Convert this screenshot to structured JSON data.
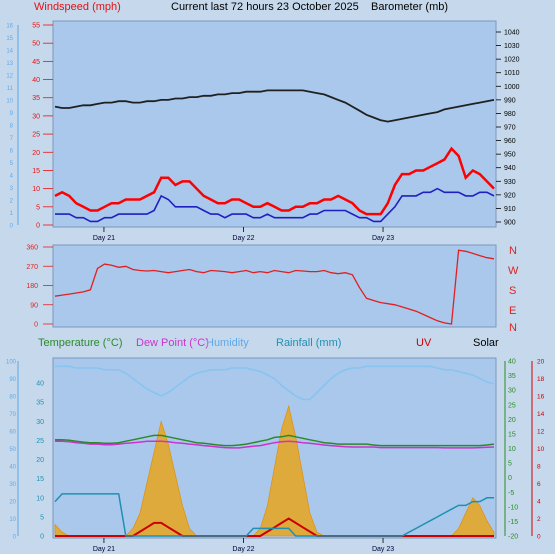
{
  "header": {
    "windspeed_label": "Windspeed (mph)",
    "title": "Current last 72 hours 23 October 2025",
    "barometer_label": "Barometer (mb)"
  },
  "middle": {
    "compass": [
      "N",
      "W",
      "S",
      "E",
      "N"
    ]
  },
  "bottom_header": {
    "temperature": "Temperature (°C)",
    "dew_point": "Dew Point (°C)",
    "humidity": "Humidity",
    "rainfall": "Rainfall (mm)",
    "uv": "UV",
    "solar": "Solar"
  },
  "colors": {
    "bg": "#c6d9ec",
    "plot": "#a9c8ec",
    "wind_gust": "#ff0000",
    "wind_avg": "#2020c0",
    "barometer": "#202020",
    "direction": "#e02020",
    "temperature": "#2a8a2a",
    "dew_point": "#cc33cc",
    "humidity": "#88c4f0",
    "rainfall": "#2090b0",
    "uv": "#cc0000",
    "solar": "#f0a000",
    "wind_axis": "#e81010",
    "humidity_axis": "#60a8e8",
    "temp_axis": "#2a8a2a",
    "rain_axis": "#2090b0",
    "uv_axis": "#cc0000"
  },
  "chart_data": [
    {
      "type": "line",
      "name_ref": "wind_baro",
      "x_labels": [
        "Day 21",
        "Day 22",
        "Day 23"
      ],
      "y_left": {
        "label": "Windspeed (mph)",
        "range": [
          0,
          55
        ],
        "ticks": [
          0,
          5,
          10,
          15,
          20,
          25,
          30,
          35,
          40,
          45,
          50,
          55
        ]
      },
      "y_left_outer": {
        "range": [
          0,
          16
        ],
        "ticks": [
          0,
          1,
          2,
          3,
          4,
          5,
          6,
          7,
          8,
          9,
          10,
          11,
          12,
          13,
          14,
          15,
          16
        ]
      },
      "y_right": {
        "label": "Barometer (mb)",
        "range": [
          900,
          1040
        ],
        "ticks": [
          900,
          910,
          920,
          930,
          940,
          950,
          960,
          970,
          980,
          990,
          1000,
          1010,
          1020,
          1030,
          1040
        ]
      },
      "series": [
        {
          "name": "gust",
          "values": [
            8,
            9,
            8,
            6,
            5,
            4,
            4,
            5,
            6,
            6,
            7,
            7,
            7,
            8,
            9,
            13,
            13,
            11,
            12,
            12,
            10,
            8,
            7,
            6,
            6,
            7,
            7,
            6,
            5,
            5,
            6,
            5,
            4,
            4,
            5,
            5,
            6,
            6,
            7,
            7,
            8,
            7,
            6,
            4,
            3,
            3,
            3,
            6,
            11,
            14,
            14,
            15,
            15,
            16,
            17,
            18,
            21,
            19,
            13,
            15,
            14,
            12,
            10
          ]
        },
        {
          "name": "average",
          "values": [
            3,
            3,
            3,
            2,
            2,
            1,
            1,
            2,
            2,
            3,
            3,
            3,
            3,
            3,
            4,
            8,
            7,
            5,
            5,
            5,
            5,
            4,
            3,
            3,
            2,
            3,
            3,
            3,
            2,
            2,
            3,
            2,
            2,
            2,
            2,
            2,
            3,
            3,
            4,
            4,
            4,
            4,
            3,
            2,
            2,
            1,
            1,
            3,
            5,
            8,
            8,
            8,
            9,
            9,
            10,
            9,
            9,
            9,
            8,
            8,
            9,
            9,
            8
          ]
        },
        {
          "name": "barometer",
          "values": [
            985,
            984,
            984,
            985,
            986,
            986,
            987,
            988,
            988,
            989,
            989,
            988,
            988,
            989,
            989,
            990,
            990,
            991,
            991,
            992,
            992,
            993,
            993,
            994,
            994,
            995,
            995,
            996,
            996,
            996,
            997,
            997,
            997,
            997,
            997,
            997,
            996,
            995,
            994,
            992,
            990,
            988,
            985,
            982,
            979,
            977,
            975,
            974,
            975,
            976,
            977,
            978,
            979,
            980,
            981,
            983,
            984,
            985,
            986,
            987,
            988,
            989,
            990
          ]
        }
      ]
    },
    {
      "type": "line",
      "name_ref": "direction",
      "y_left": {
        "range": [
          0,
          360
        ],
        "ticks": [
          0,
          90,
          180,
          270,
          360
        ]
      },
      "y_right_labels": [
        "N",
        "W",
        "S",
        "E",
        "N"
      ],
      "series": [
        {
          "name": "direction",
          "values": [
            130,
            135,
            140,
            145,
            150,
            160,
            260,
            280,
            275,
            265,
            270,
            255,
            250,
            248,
            250,
            245,
            240,
            245,
            250,
            255,
            245,
            240,
            250,
            248,
            245,
            240,
            245,
            250,
            240,
            245,
            240,
            250,
            245,
            240,
            250,
            248,
            245,
            245,
            250,
            240,
            235,
            240,
            230,
            170,
            120,
            110,
            100,
            95,
            90,
            80,
            70,
            60,
            45,
            30,
            15,
            5,
            0,
            345,
            340,
            330,
            320,
            310,
            305
          ]
        }
      ]
    },
    {
      "type": "line",
      "name_ref": "temp_rain",
      "x_labels": [
        "Day 21",
        "Day 22",
        "Day 23"
      ],
      "y_left": {
        "label": "Humidity",
        "range": [
          0,
          100
        ],
        "ticks": [
          0,
          10,
          20,
          30,
          40,
          50,
          60,
          70,
          80,
          90,
          100
        ]
      },
      "y_left_inner": {
        "label": "Rainfall (mm)",
        "range": [
          0,
          40
        ],
        "ticks": [
          0,
          5,
          10,
          15,
          20,
          25,
          30,
          35,
          40
        ]
      },
      "y_right_inner": {
        "label": "Temperature (°C)",
        "range": [
          -20,
          40
        ],
        "ticks": [
          -20,
          -15,
          -10,
          -5,
          0,
          5,
          10,
          15,
          20,
          25,
          30,
          35,
          40
        ]
      },
      "y_right": {
        "label": "UV",
        "range": [
          0,
          20
        ],
        "ticks": [
          0,
          2,
          4,
          6,
          8,
          10,
          12,
          14,
          16,
          18,
          20
        ]
      },
      "series": [
        {
          "name": "humidity",
          "values": [
            97,
            97,
            97,
            96,
            96,
            96,
            96,
            95,
            95,
            95,
            93,
            90,
            87,
            84,
            82,
            80,
            82,
            85,
            88,
            91,
            93,
            94,
            95,
            95,
            95,
            96,
            96,
            96,
            95,
            94,
            92,
            90,
            86,
            83,
            80,
            78,
            78,
            82,
            86,
            90,
            93,
            95,
            96,
            96,
            97,
            97,
            97,
            97,
            97,
            97,
            97,
            97,
            97,
            97,
            96,
            95,
            95,
            94,
            93,
            92,
            90,
            88,
            87
          ]
        },
        {
          "name": "temperature",
          "values": [
            13,
            13,
            12.8,
            12.5,
            12.2,
            12,
            12,
            11.8,
            11.8,
            12,
            12.5,
            13,
            13.5,
            14,
            14.5,
            14.5,
            14,
            13.5,
            13,
            12.5,
            12,
            11.8,
            11.5,
            11.2,
            11,
            11,
            11.2,
            11.5,
            12,
            12.5,
            13,
            13.8,
            14,
            14.5,
            14,
            13.5,
            13,
            12.5,
            12,
            11.8,
            11.5,
            11.5,
            11.5,
            11.5,
            11.5,
            11.2,
            11,
            11,
            11,
            11,
            11,
            11,
            11,
            11,
            11,
            11,
            11,
            11,
            11,
            11,
            11,
            11.2,
            11.5
          ]
        },
        {
          "name": "dew_point",
          "values": [
            12.5,
            12.5,
            12.3,
            12,
            11.8,
            11.5,
            11.5,
            11.3,
            11.3,
            11.5,
            11.8,
            12,
            12.2,
            12.5,
            12.5,
            12.5,
            12.3,
            12,
            11.8,
            11.5,
            11.3,
            11,
            10.8,
            10.5,
            10.3,
            10.2,
            10.2,
            10.5,
            10.8,
            11,
            11.5,
            12,
            12.3,
            12.5,
            12.3,
            12,
            11.8,
            11.5,
            11.2,
            11,
            10.8,
            10.6,
            10.5,
            10.5,
            10.5,
            10.5,
            10.3,
            10.3,
            10.3,
            10.3,
            10.3,
            10.3,
            10.3,
            10.3,
            10.3,
            10.2,
            10.2,
            10.2,
            10.2,
            10.2,
            10.3,
            10.4,
            10.5
          ]
        },
        {
          "name": "rainfall",
          "values": [
            9,
            11,
            11,
            11,
            11,
            11,
            11,
            11,
            11,
            11,
            0,
            0,
            0,
            0,
            0,
            0,
            0,
            0,
            0,
            0,
            0,
            0,
            0,
            0,
            0,
            0,
            0,
            0,
            2,
            2,
            2,
            2,
            2,
            2,
            0,
            0,
            0,
            0,
            0,
            0,
            0,
            0,
            0,
            0,
            0,
            0,
            0,
            0,
            0,
            0,
            1,
            2,
            3,
            4,
            5,
            6,
            7,
            8,
            8,
            9,
            9,
            10,
            10
          ]
        },
        {
          "name": "uv",
          "values": [
            0,
            0,
            0,
            0,
            0,
            0,
            0,
            0,
            0,
            0,
            0,
            0,
            0.5,
            1,
            1.5,
            1.5,
            1,
            0.5,
            0,
            0,
            0,
            0,
            0,
            0,
            0,
            0,
            0,
            0,
            0,
            0,
            0.5,
            1,
            1.5,
            2,
            1.5,
            1,
            0.5,
            0,
            0,
            0,
            0,
            0,
            0,
            0,
            0,
            0,
            0,
            0,
            0,
            0,
            0,
            0,
            0,
            0,
            0,
            0,
            0,
            0,
            0,
            0,
            0,
            0,
            0
          ]
        },
        {
          "name": "solar",
          "values": [
            3,
            1,
            0,
            0,
            0,
            0,
            0,
            0,
            0,
            0,
            0,
            2,
            6,
            14,
            22,
            30,
            24,
            16,
            8,
            2,
            0,
            0,
            0,
            0,
            0,
            0,
            0,
            0,
            0,
            2,
            8,
            18,
            28,
            34,
            26,
            16,
            6,
            1,
            0,
            0,
            0,
            0,
            0,
            0,
            0,
            0,
            0,
            0,
            0,
            0,
            0,
            0,
            0,
            0,
            0,
            0,
            0,
            2,
            6,
            10,
            8,
            4,
            1
          ]
        }
      ]
    }
  ]
}
